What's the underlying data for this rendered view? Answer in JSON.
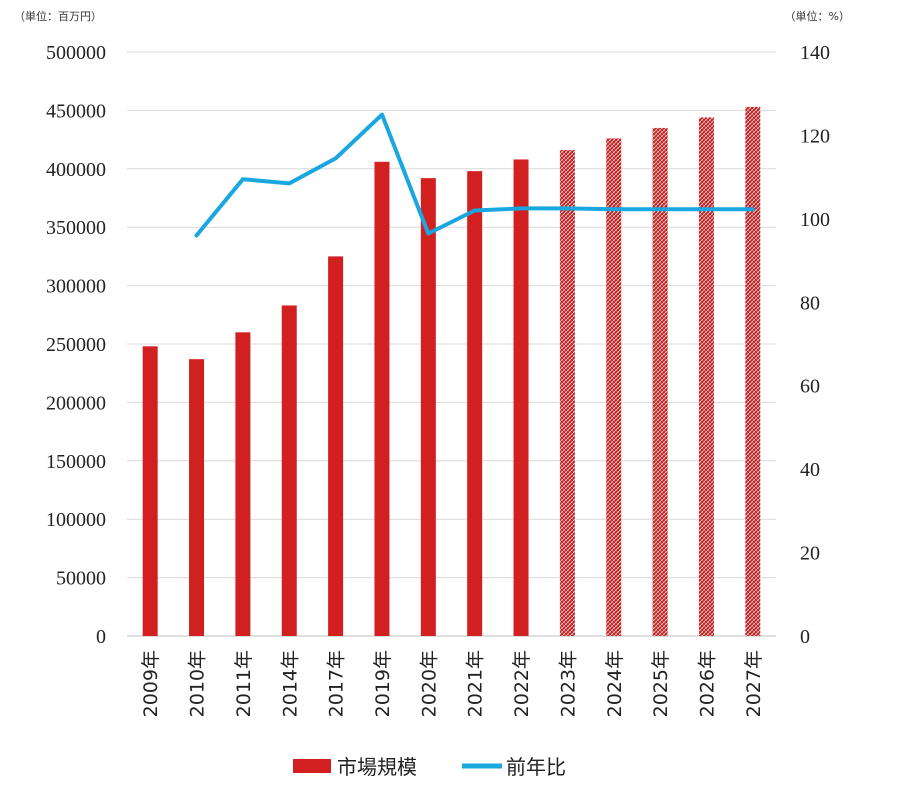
{
  "chart_data": {
    "type": "bar",
    "left_unit": "（単位：百万円）",
    "right_unit": "（単位：%）",
    "categories": [
      "2009年",
      "2010年",
      "2011年",
      "2014年",
      "2017年",
      "2019年",
      "2020年",
      "2021年",
      "2022年",
      "2023年",
      "2024年",
      "2025年",
      "2026年",
      "2027年"
    ],
    "left_axis": {
      "min": 0,
      "max": 500000,
      "ticks": [
        0,
        50000,
        100000,
        150000,
        200000,
        250000,
        300000,
        350000,
        400000,
        450000,
        500000
      ]
    },
    "right_axis": {
      "min": 0,
      "max": 140,
      "ticks": [
        0,
        20,
        40,
        60,
        80,
        100,
        120,
        140
      ]
    },
    "grid": true,
    "legend_position": "bottom",
    "series": [
      {
        "name": "市場規模",
        "type": "bar",
        "axis": "left",
        "color": "#D22020",
        "values": [
          248000,
          237000,
          260000,
          283000,
          325000,
          406000,
          392000,
          398000,
          408000,
          416000,
          426000,
          435000,
          444000,
          453000
        ],
        "forecast_from_index": 9
      },
      {
        "name": "前年比",
        "type": "line",
        "axis": "right",
        "color": "#1AA7E0",
        "values": [
          null,
          96,
          109.5,
          108.5,
          114.5,
          125,
          96.5,
          102,
          102.5,
          102.5,
          102.3,
          102.3,
          102.3,
          102.3
        ]
      }
    ]
  }
}
